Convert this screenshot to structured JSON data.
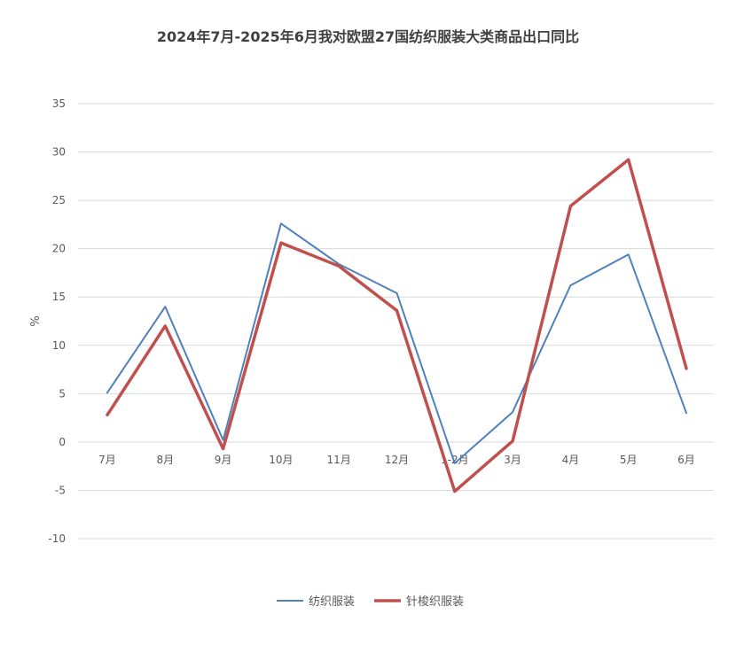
{
  "chart_data": {
    "type": "line",
    "title": "2024年7月-2025年6月我对欧盟27国纺织服装大类商品出口同比",
    "ylabel": "%",
    "xlabel": "",
    "ylim": [
      -10,
      35
    ],
    "yticks": [
      -10,
      -5,
      0,
      5,
      10,
      15,
      20,
      25,
      30,
      35
    ],
    "grid": true,
    "legend_position": "bottom",
    "categories": [
      "7月",
      "8月",
      "9月",
      "10月",
      "11月",
      "12月",
      "1-2月",
      "3月",
      "4月",
      "5月",
      "6月"
    ],
    "series": [
      {
        "name": "纺织服装",
        "color": "#4F81BD",
        "values": [
          5.1,
          14.0,
          0.2,
          22.6,
          18.4,
          15.4,
          -2.2,
          3.1,
          16.2,
          19.4,
          3.0
        ]
      },
      {
        "name": "针梭织服装",
        "color": "#C0504D",
        "values": [
          2.8,
          12.0,
          -0.7,
          20.6,
          18.2,
          13.6,
          -5.1,
          0.1,
          24.4,
          29.2,
          7.6
        ]
      }
    ]
  }
}
